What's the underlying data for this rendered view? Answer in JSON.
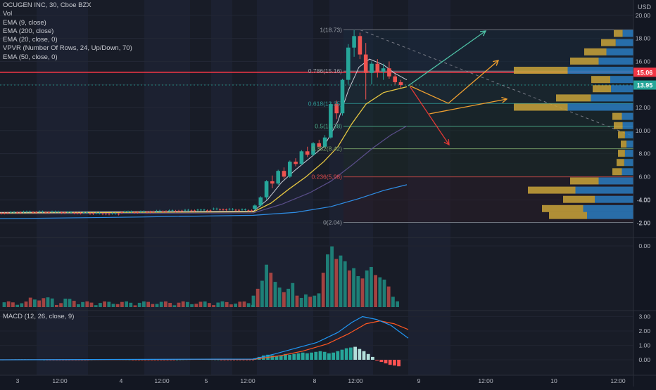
{
  "header": {
    "title": "OCUGEN INC, 30, Cboe BZX",
    "indicators": [
      "Vol",
      "EMA (9, close)",
      "EMA (200, close)",
      "EMA (20, close, 0)",
      "VPVR (Number Of Rows, 24, Up/Down, 70)",
      "EMA (50, close, 0)"
    ],
    "currency": "USD"
  },
  "price_panel": {
    "last_price": "13.95",
    "red_line_price": "15.06"
  },
  "macd_panel": {
    "label": "MACD (12, 26, close, 9)"
  },
  "chart_data": [
    {
      "type": "candlestick",
      "panel": "price",
      "y_ticks": [
        "20.00",
        "18.00",
        "16.00",
        "14.00",
        "12.00",
        "10.00",
        "8.00",
        "6.00",
        "4.00",
        "2.00"
      ],
      "x_ticks": [
        "3",
        "12:00",
        "4",
        "12:00",
        "5",
        "12:00",
        "8",
        "12:00",
        "9",
        "12:00",
        "10",
        "12:00"
      ],
      "ylim": [
        2,
        20
      ],
      "ohlc_estimate": [
        [
          2.9,
          3.0,
          2.8,
          2.9
        ],
        [
          2.9,
          3.1,
          2.8,
          2.85
        ],
        [
          2.85,
          2.95,
          2.75,
          2.8
        ],
        [
          2.8,
          2.9,
          2.7,
          2.8
        ],
        [
          2.8,
          2.9,
          2.75,
          2.85
        ],
        [
          2.85,
          3.0,
          2.8,
          2.9
        ],
        [
          2.9,
          3.2,
          2.85,
          3.1
        ],
        [
          3.1,
          3.3,
          3.0,
          3.2
        ],
        [
          3.2,
          3.3,
          3.05,
          3.1
        ],
        [
          3.1,
          3.2,
          3.0,
          3.1
        ],
        [
          3.1,
          3.2,
          3.0,
          3.05
        ],
        [
          3.05,
          3.3,
          3.0,
          3.2
        ],
        [
          3.2,
          3.6,
          3.1,
          3.5
        ],
        [
          3.5,
          4.3,
          3.4,
          4.2
        ],
        [
          4.2,
          5.7,
          4.0,
          5.6
        ],
        [
          5.6,
          6.1,
          5.0,
          5.4
        ],
        [
          5.4,
          6.6,
          5.3,
          6.5
        ],
        [
          6.5,
          6.8,
          5.8,
          6.0
        ],
        [
          6.0,
          7.4,
          5.9,
          7.3
        ],
        [
          7.3,
          7.6,
          6.9,
          7.1
        ],
        [
          7.1,
          8.3,
          7.0,
          8.2
        ],
        [
          8.2,
          8.6,
          7.7,
          7.9
        ],
        [
          7.9,
          9.0,
          7.8,
          8.9
        ],
        [
          8.9,
          9.2,
          8.4,
          8.6
        ],
        [
          8.6,
          9.6,
          8.5,
          9.4
        ],
        [
          9.4,
          12.5,
          9.3,
          12.3
        ],
        [
          12.3,
          12.6,
          11.0,
          11.5
        ],
        [
          11.5,
          14.5,
          11.3,
          14.4
        ],
        [
          14.4,
          17.5,
          14.0,
          17.2
        ],
        [
          17.2,
          18.73,
          16.4,
          18.2
        ],
        [
          18.2,
          18.5,
          16.2,
          16.6
        ],
        [
          16.6,
          17.6,
          12.7,
          15.0
        ],
        [
          15.0,
          16.0,
          14.0,
          15.8
        ],
        [
          15.8,
          16.2,
          14.6,
          15.1
        ],
        [
          15.1,
          15.8,
          14.4,
          15.4
        ],
        [
          15.4,
          16.0,
          14.5,
          14.7
        ],
        [
          14.7,
          14.9,
          14.0,
          14.2
        ],
        [
          14.2,
          14.4,
          13.7,
          13.95
        ]
      ],
      "fibonacci": [
        {
          "label": "1(18.73)",
          "value": 18.73
        },
        {
          "label": "0.786(15.16)",
          "value": 15.16
        },
        {
          "label": "0.618(12.35)",
          "value": 12.35
        },
        {
          "label": "0.5(10.38)",
          "value": 10.38
        },
        {
          "label": "0.382(8.42)",
          "value": 8.42
        },
        {
          "label": "0.236(5.98)",
          "value": 5.98
        },
        {
          "label": "0(2.04)",
          "value": 2.04
        }
      ]
    },
    {
      "type": "bar",
      "panel": "volume",
      "y_ticks": [
        "0.00",
        "-2.00",
        "-4.00"
      ]
    },
    {
      "type": "line",
      "panel": "macd",
      "y_ticks": [
        "3.00",
        "2.00",
        "1.00",
        "0.00"
      ],
      "series": [
        {
          "name": "MACD",
          "color": "#2196f3"
        },
        {
          "name": "Signal",
          "color": "#ff5722"
        }
      ]
    }
  ],
  "colors": {
    "up": "#26a69a",
    "down": "#ef5350",
    "background": "#131722",
    "redline": "#f23645",
    "ema9": "#c9cdd6",
    "ema20": "#e8c842",
    "ema50": "#5a4e8a",
    "ema200": "#2f8ee6"
  }
}
